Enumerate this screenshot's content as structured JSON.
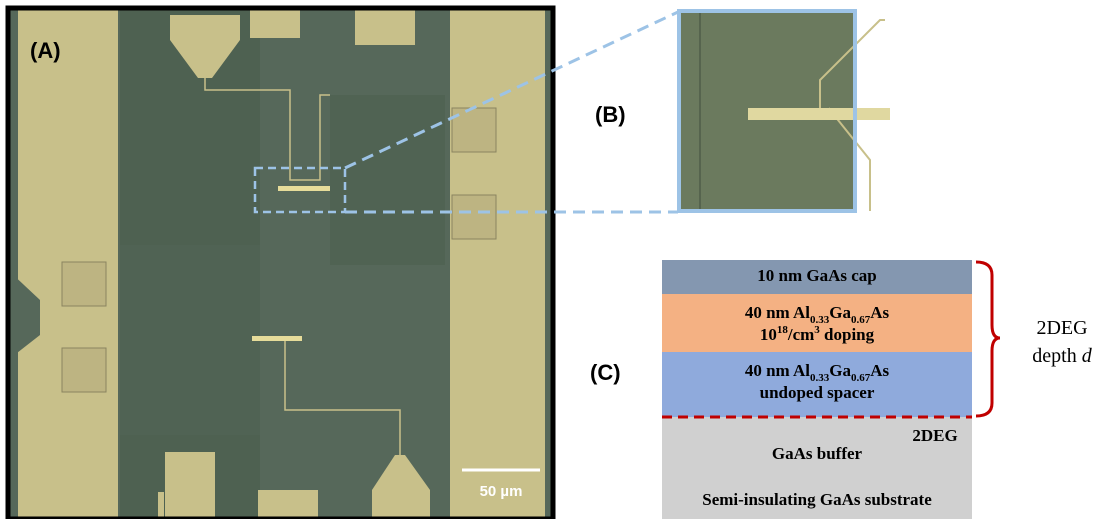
{
  "panels": {
    "a": {
      "label": "(A)",
      "scale": "50 µm"
    },
    "b": {
      "label": "(B)"
    },
    "c": {
      "label": "(C)",
      "layers": [
        {
          "lines": [
            [
              "10 nm GaAs cap"
            ]
          ]
        },
        {
          "lines": [
            [
              "40 nm Al",
              "0.33",
              "Ga",
              "0.67",
              "As"
            ],
            [
              "10",
              "18",
              "/cm",
              "3",
              " doping"
            ]
          ]
        },
        {
          "lines": [
            [
              "40 nm Al",
              "0.33",
              "Ga",
              "0.67",
              "As"
            ],
            [
              "undoped spacer"
            ]
          ]
        },
        {
          "lines": [
            [
              "GaAs buffer"
            ],
            [
              "Semi-insulating GaAs substrate"
            ]
          ]
        }
      ],
      "interface": "2DEG",
      "brace": {
        "line1": "2DEG",
        "line2": "depth",
        "symbol": "d"
      }
    }
  }
}
